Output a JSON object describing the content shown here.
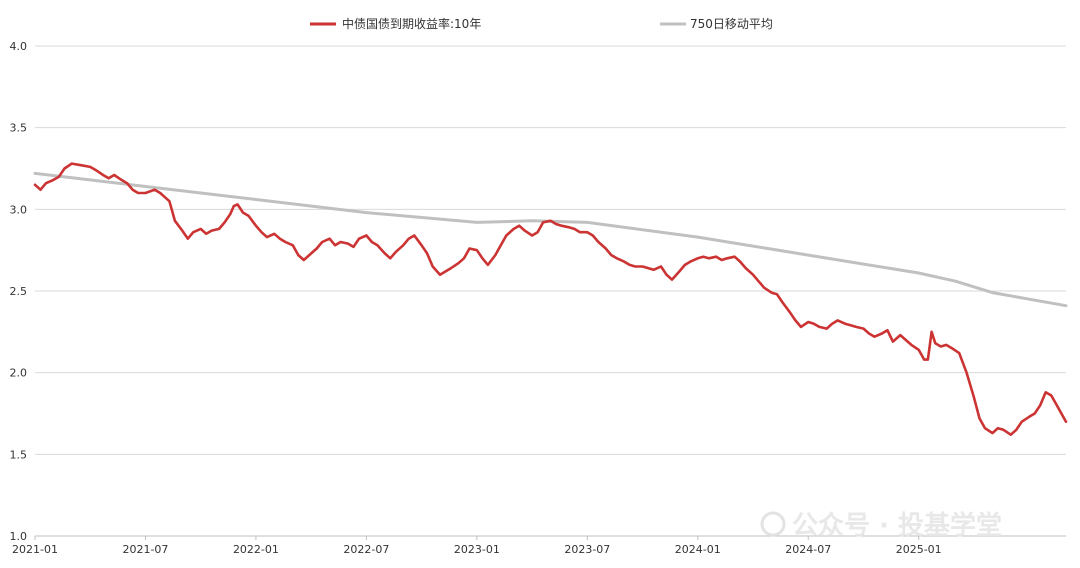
{
  "chart_data": {
    "type": "line",
    "title": "",
    "xlabel": "",
    "ylabel": "",
    "ylim": [
      1.0,
      4.0
    ],
    "y_ticks": [
      "1.0",
      "1.5",
      "2.0",
      "2.5",
      "3.0",
      "3.5",
      "4.0"
    ],
    "x_range": [
      0,
      56
    ],
    "x_ticks": [
      {
        "label": "2021-01",
        "month": 0
      },
      {
        "label": "2021-07",
        "month": 6
      },
      {
        "label": "2022-01",
        "month": 12
      },
      {
        "label": "2022-07",
        "month": 18
      },
      {
        "label": "2023-01",
        "month": 24
      },
      {
        "label": "2023-07",
        "month": 30
      },
      {
        "label": "2024-01",
        "month": 36
      },
      {
        "label": "2024-07",
        "month": 42
      },
      {
        "label": "2025-01",
        "month": 48
      }
    ],
    "legend_position": "top",
    "series": [
      {
        "name": "中债国债到期收益率:10年",
        "color": "#cc3333",
        "points": [
          [
            0.0,
            3.15
          ],
          [
            0.3,
            3.12
          ],
          [
            0.6,
            3.16
          ],
          [
            1.0,
            3.18
          ],
          [
            1.3,
            3.2
          ],
          [
            1.6,
            3.25
          ],
          [
            2.0,
            3.28
          ],
          [
            2.5,
            3.27
          ],
          [
            3.0,
            3.26
          ],
          [
            3.3,
            3.24
          ],
          [
            3.7,
            3.21
          ],
          [
            4.0,
            3.19
          ],
          [
            4.3,
            3.21
          ],
          [
            4.7,
            3.18
          ],
          [
            5.0,
            3.16
          ],
          [
            5.3,
            3.12
          ],
          [
            5.6,
            3.1
          ],
          [
            6.0,
            3.1
          ],
          [
            6.5,
            3.12
          ],
          [
            6.8,
            3.1
          ],
          [
            7.0,
            3.08
          ],
          [
            7.3,
            3.05
          ],
          [
            7.6,
            2.93
          ],
          [
            8.0,
            2.87
          ],
          [
            8.3,
            2.82
          ],
          [
            8.6,
            2.86
          ],
          [
            9.0,
            2.88
          ],
          [
            9.3,
            2.85
          ],
          [
            9.6,
            2.87
          ],
          [
            10.0,
            2.88
          ],
          [
            10.3,
            2.92
          ],
          [
            10.6,
            2.97
          ],
          [
            10.8,
            3.02
          ],
          [
            11.0,
            3.03
          ],
          [
            11.3,
            2.98
          ],
          [
            11.6,
            2.96
          ],
          [
            12.0,
            2.9
          ],
          [
            12.3,
            2.86
          ],
          [
            12.6,
            2.83
          ],
          [
            13.0,
            2.85
          ],
          [
            13.3,
            2.82
          ],
          [
            13.6,
            2.8
          ],
          [
            14.0,
            2.78
          ],
          [
            14.3,
            2.72
          ],
          [
            14.6,
            2.69
          ],
          [
            15.0,
            2.73
          ],
          [
            15.3,
            2.76
          ],
          [
            15.6,
            2.8
          ],
          [
            16.0,
            2.82
          ],
          [
            16.3,
            2.78
          ],
          [
            16.6,
            2.8
          ],
          [
            17.0,
            2.79
          ],
          [
            17.3,
            2.77
          ],
          [
            17.6,
            2.82
          ],
          [
            18.0,
            2.84
          ],
          [
            18.3,
            2.8
          ],
          [
            18.6,
            2.78
          ],
          [
            19.0,
            2.73
          ],
          [
            19.3,
            2.7
          ],
          [
            19.6,
            2.74
          ],
          [
            20.0,
            2.78
          ],
          [
            20.3,
            2.82
          ],
          [
            20.6,
            2.84
          ],
          [
            21.0,
            2.78
          ],
          [
            21.3,
            2.73
          ],
          [
            21.6,
            2.65
          ],
          [
            22.0,
            2.6
          ],
          [
            22.3,
            2.62
          ],
          [
            22.6,
            2.64
          ],
          [
            23.0,
            2.67
          ],
          [
            23.3,
            2.7
          ],
          [
            23.6,
            2.76
          ],
          [
            24.0,
            2.75
          ],
          [
            24.3,
            2.7
          ],
          [
            24.6,
            2.66
          ],
          [
            25.0,
            2.72
          ],
          [
            25.3,
            2.78
          ],
          [
            25.6,
            2.84
          ],
          [
            26.0,
            2.88
          ],
          [
            26.3,
            2.9
          ],
          [
            26.6,
            2.87
          ],
          [
            27.0,
            2.84
          ],
          [
            27.3,
            2.86
          ],
          [
            27.6,
            2.92
          ],
          [
            28.0,
            2.93
          ],
          [
            28.3,
            2.91
          ],
          [
            28.6,
            2.9
          ],
          [
            29.0,
            2.89
          ],
          [
            29.3,
            2.88
          ],
          [
            29.6,
            2.86
          ],
          [
            30.0,
            2.86
          ],
          [
            30.3,
            2.84
          ],
          [
            30.6,
            2.8
          ],
          [
            31.0,
            2.76
          ],
          [
            31.3,
            2.72
          ],
          [
            31.6,
            2.7
          ],
          [
            32.0,
            2.68
          ],
          [
            32.3,
            2.66
          ],
          [
            32.6,
            2.65
          ],
          [
            33.0,
            2.65
          ],
          [
            33.3,
            2.64
          ],
          [
            33.6,
            2.63
          ],
          [
            34.0,
            2.65
          ],
          [
            34.3,
            2.6
          ],
          [
            34.6,
            2.57
          ],
          [
            35.0,
            2.62
          ],
          [
            35.3,
            2.66
          ],
          [
            35.6,
            2.68
          ],
          [
            36.0,
            2.7
          ],
          [
            36.3,
            2.71
          ],
          [
            36.6,
            2.7
          ],
          [
            37.0,
            2.71
          ],
          [
            37.3,
            2.69
          ],
          [
            37.6,
            2.7
          ],
          [
            38.0,
            2.71
          ],
          [
            38.3,
            2.68
          ],
          [
            38.6,
            2.64
          ],
          [
            39.0,
            2.6
          ],
          [
            39.3,
            2.56
          ],
          [
            39.6,
            2.52
          ],
          [
            40.0,
            2.49
          ],
          [
            40.3,
            2.48
          ],
          [
            40.6,
            2.43
          ],
          [
            41.0,
            2.37
          ],
          [
            41.3,
            2.32
          ],
          [
            41.6,
            2.28
          ],
          [
            42.0,
            2.31
          ],
          [
            42.3,
            2.3
          ],
          [
            42.6,
            2.28
          ],
          [
            43.0,
            2.27
          ],
          [
            43.3,
            2.3
          ],
          [
            43.6,
            2.32
          ],
          [
            44.0,
            2.3
          ],
          [
            44.3,
            2.29
          ],
          [
            44.6,
            2.28
          ],
          [
            45.0,
            2.27
          ],
          [
            45.3,
            2.24
          ],
          [
            45.6,
            2.22
          ],
          [
            46.0,
            2.24
          ],
          [
            46.3,
            2.26
          ],
          [
            46.6,
            2.19
          ],
          [
            47.0,
            2.23
          ],
          [
            47.3,
            2.2
          ],
          [
            47.6,
            2.17
          ],
          [
            48.0,
            2.14
          ],
          [
            48.3,
            2.08
          ],
          [
            48.5,
            2.08
          ],
          [
            48.7,
            2.25
          ],
          [
            48.9,
            2.18
          ],
          [
            49.2,
            2.16
          ],
          [
            49.5,
            2.17
          ],
          [
            49.8,
            2.15
          ],
          [
            50.2,
            2.12
          ],
          [
            50.6,
            2.0
          ],
          [
            51.0,
            1.85
          ],
          [
            51.3,
            1.72
          ],
          [
            51.6,
            1.66
          ],
          [
            52.0,
            1.63
          ],
          [
            52.3,
            1.66
          ],
          [
            52.6,
            1.65
          ],
          [
            53.0,
            1.62
          ],
          [
            53.3,
            1.65
          ],
          [
            53.6,
            1.7
          ],
          [
            54.0,
            1.73
          ],
          [
            54.3,
            1.75
          ],
          [
            54.6,
            1.8
          ],
          [
            54.9,
            1.88
          ],
          [
            55.2,
            1.86
          ],
          [
            55.5,
            1.8
          ],
          [
            55.8,
            1.74
          ],
          [
            56.0,
            1.7
          ]
        ]
      },
      {
        "name": "750日移动平均",
        "color": "#c0c0c0",
        "points": [
          [
            0.0,
            3.22
          ],
          [
            6.0,
            3.14
          ],
          [
            12.0,
            3.06
          ],
          [
            18.0,
            2.98
          ],
          [
            24.0,
            2.92
          ],
          [
            27.0,
            2.93
          ],
          [
            30.0,
            2.92
          ],
          [
            36.0,
            2.83
          ],
          [
            42.0,
            2.72
          ],
          [
            48.0,
            2.61
          ],
          [
            50.0,
            2.56
          ],
          [
            52.0,
            2.49
          ],
          [
            54.0,
            2.45
          ],
          [
            56.0,
            2.41
          ]
        ]
      }
    ]
  },
  "watermark": "公众号 · 投基学堂",
  "legend": {
    "item1": "中债国债到期收益率:10年",
    "item2": "750日移动平均"
  }
}
